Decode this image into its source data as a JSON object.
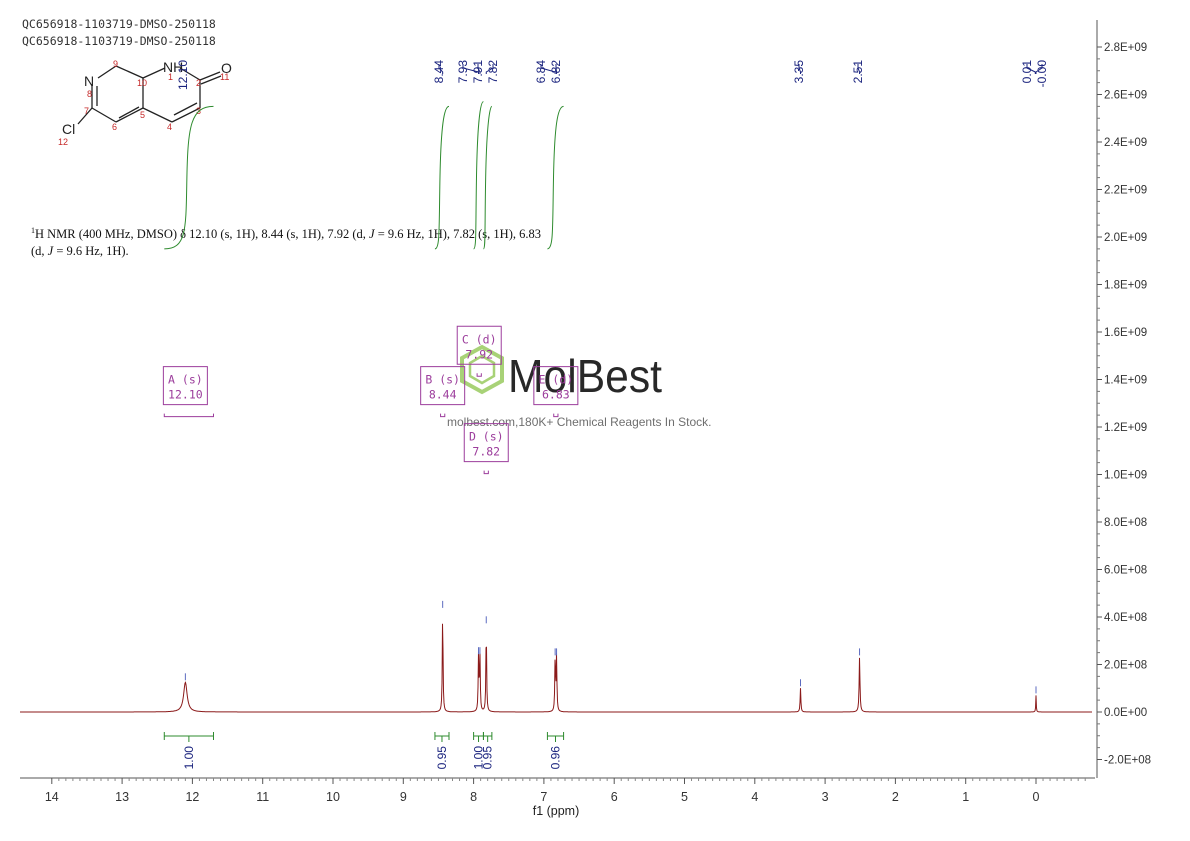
{
  "header": {
    "sample_line1": "QC656918-1103719-DMSO-250118",
    "sample_line2": "QC656918-1103719-DMSO-250118"
  },
  "description": {
    "line1_pre": "H NMR (400 MHz, DMSO) δ 12.10 (s, 1H), 8.44 (s, 1H), 7.92 (d, ",
    "line1_j": "J",
    "line1_post": " = 9.6 Hz, 1H), 7.82 (s, 1H), 6.83",
    "line1_sup": "1",
    "line2_pre": "(d, ",
    "line2_j": "J",
    "line2_post": " = 9.6 Hz, 1H)."
  },
  "watermark": {
    "brand": "MolBest",
    "tagline": "molbest.com,180K+ Chemical Reagents In Stock."
  },
  "molecule": {
    "atom_labels": [
      "N",
      "NH",
      "O",
      "Cl"
    ],
    "atom_numbers": [
      "1",
      "2",
      "3",
      "4",
      "5",
      "6",
      "7",
      "8",
      "9",
      "10",
      "11",
      "12"
    ]
  },
  "chart_data": {
    "type": "line",
    "title": "",
    "xlabel": "f1 (ppm)",
    "ylabel": "",
    "xlim": [
      14.3,
      -0.8
    ],
    "ylim": [
      -260000000.0,
      2900000000.0
    ],
    "x_ticks": [
      14,
      13,
      12,
      11,
      10,
      9,
      8,
      7,
      6,
      5,
      4,
      3,
      2,
      1,
      0
    ],
    "y_ticks": [
      -200000000.0,
      0,
      200000000.0,
      400000000.0,
      600000000.0,
      800000000.0,
      1000000000.0,
      1200000000.0,
      1400000000.0,
      1600000000.0,
      1800000000.0,
      2000000000.0,
      2200000000.0,
      2400000000.0,
      2600000000.0,
      2800000000.0
    ],
    "y_tick_labels": [
      "-2.0E+08",
      "0.0E+00",
      "2.0E+08",
      "4.0E+08",
      "6.0E+08",
      "8.0E+08",
      "1.0E+09",
      "1.2E+09",
      "1.4E+09",
      "1.6E+09",
      "1.8E+09",
      "2.0E+09",
      "2.2E+09",
      "2.4E+09",
      "2.6E+09",
      "2.8E+09"
    ],
    "grid": false,
    "spectrum_color": "#8b1a1a",
    "integral_color": "#2e8b2e",
    "label_color": "#1a237e",
    "multiplet_color": "#9c3d9c",
    "peaks": [
      {
        "ppm": 12.1,
        "height": 125000000.0,
        "width": 0.03
      },
      {
        "ppm": 8.44,
        "height": 430000000.0,
        "width": 0.006
      },
      {
        "ppm": 7.93,
        "height": 235000000.0,
        "width": 0.006
      },
      {
        "ppm": 7.91,
        "height": 235000000.0,
        "width": 0.006
      },
      {
        "ppm": 7.82,
        "height": 365000000.0,
        "width": 0.006
      },
      {
        "ppm": 6.84,
        "height": 230000000.0,
        "width": 0.006
      },
      {
        "ppm": 6.82,
        "height": 230000000.0,
        "width": 0.006
      },
      {
        "ppm": 3.35,
        "height": 100000000.0,
        "width": 0.006
      },
      {
        "ppm": 2.51,
        "height": 230000000.0,
        "width": 0.007
      },
      {
        "ppm": 0.0,
        "height": 70000000.0,
        "width": 0.004
      }
    ],
    "peak_labels": [
      "8.44",
      "7.93",
      "7.91",
      "7.82",
      "6.84",
      "6.82",
      "3.35",
      "2.51",
      "0.01",
      "-0.00",
      "12.10"
    ],
    "peak_label_ppm": [
      8.44,
      7.93,
      7.91,
      7.82,
      6.84,
      6.82,
      3.35,
      2.51,
      0.01,
      -0.0,
      12.1
    ],
    "integrals": [
      {
        "value": "1.00",
        "from": 12.4,
        "to": 11.7,
        "trace_top": 2550000000.0,
        "trace_bottom": 1950000000.0
      },
      {
        "value": "0.95",
        "from": 8.55,
        "to": 8.35,
        "trace_top": 2550000000.0,
        "trace_bottom": 1950000000.0
      },
      {
        "value": "1.00",
        "from": 8.0,
        "to": 7.86,
        "trace_top": 2570000000.0,
        "trace_bottom": 1950000000.0
      },
      {
        "value": "0.95",
        "from": 7.86,
        "to": 7.74,
        "trace_top": 2550000000.0,
        "trace_bottom": 1950000000.0
      },
      {
        "value": "0.96",
        "from": 6.95,
        "to": 6.72,
        "trace_top": 2550000000.0,
        "trace_bottom": 1950000000.0
      }
    ],
    "multiplets": [
      {
        "name": "A (s)",
        "shift": "12.10",
        "ppm": 12.1,
        "y": 1370000000.0,
        "range": [
          12.4,
          11.7
        ]
      },
      {
        "name": "B (s)",
        "shift": "8.44",
        "ppm": 8.44,
        "y": 1370000000.0,
        "range": [
          8.47,
          8.41
        ]
      },
      {
        "name": "C (d)",
        "shift": "7.92",
        "ppm": 7.92,
        "y": 1540000000.0,
        "range": [
          7.95,
          7.89
        ]
      },
      {
        "name": "D (s)",
        "shift": "7.82",
        "ppm": 7.82,
        "y": 1130000000.0,
        "range": [
          7.85,
          7.79
        ]
      },
      {
        "name": "E (d)",
        "shift": "6.83",
        "ppm": 6.83,
        "y": 1370000000.0,
        "range": [
          6.86,
          6.8
        ]
      }
    ]
  }
}
